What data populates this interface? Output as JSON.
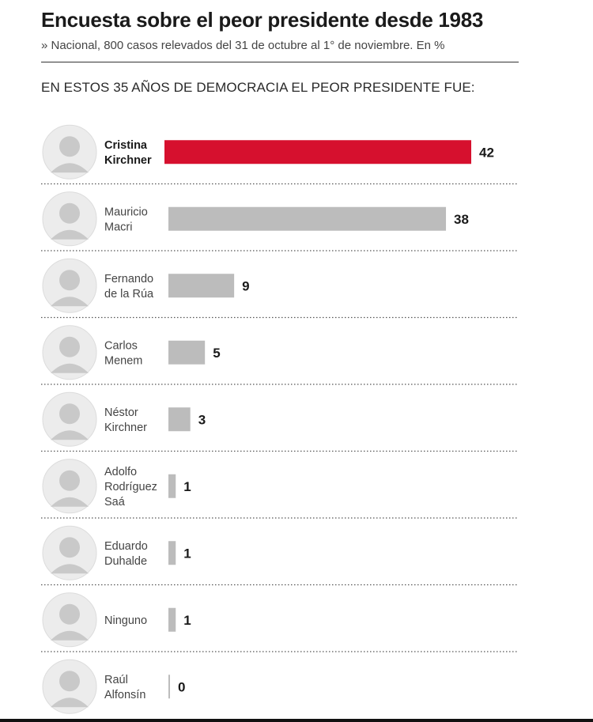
{
  "header": {
    "title": "Encuesta sobre el peor presidente desde 1983",
    "subtitle": "» Nacional, 800 casos relevados del 31 de octubre al 1° de noviembre. En %",
    "question": "EN ESTOS 35 AÑOS DE DEMOCRACIA EL PEOR PRESIDENTE FUE:"
  },
  "chart_data": {
    "type": "bar",
    "orientation": "horizontal",
    "title": "Encuesta sobre el peor presidente desde 1983",
    "subtitle": "» Nacional, 800 casos relevados del 31 de octubre al 1° de noviembre. En %",
    "categories": [
      [
        "Cristina",
        "Kirchner"
      ],
      [
        "Mauricio",
        "Macri"
      ],
      [
        "Fernando",
        "de la Rúa"
      ],
      [
        "Carlos",
        "Menem"
      ],
      [
        "Néstor",
        "Kirchner"
      ],
      [
        "Adolfo",
        "Rodríguez",
        "Saá"
      ],
      [
        "Eduardo",
        "Duhalde"
      ],
      [
        "Ninguno"
      ],
      [
        "Raúl",
        "Alfonsín"
      ]
    ],
    "values": [
      42,
      38,
      9,
      5,
      3,
      1,
      1,
      1,
      0
    ],
    "highlight_index": 0,
    "xlim": [
      0,
      42
    ],
    "grid": false,
    "colors": {
      "highlight": "#d6102e",
      "default": "#bcbcbc"
    }
  }
}
